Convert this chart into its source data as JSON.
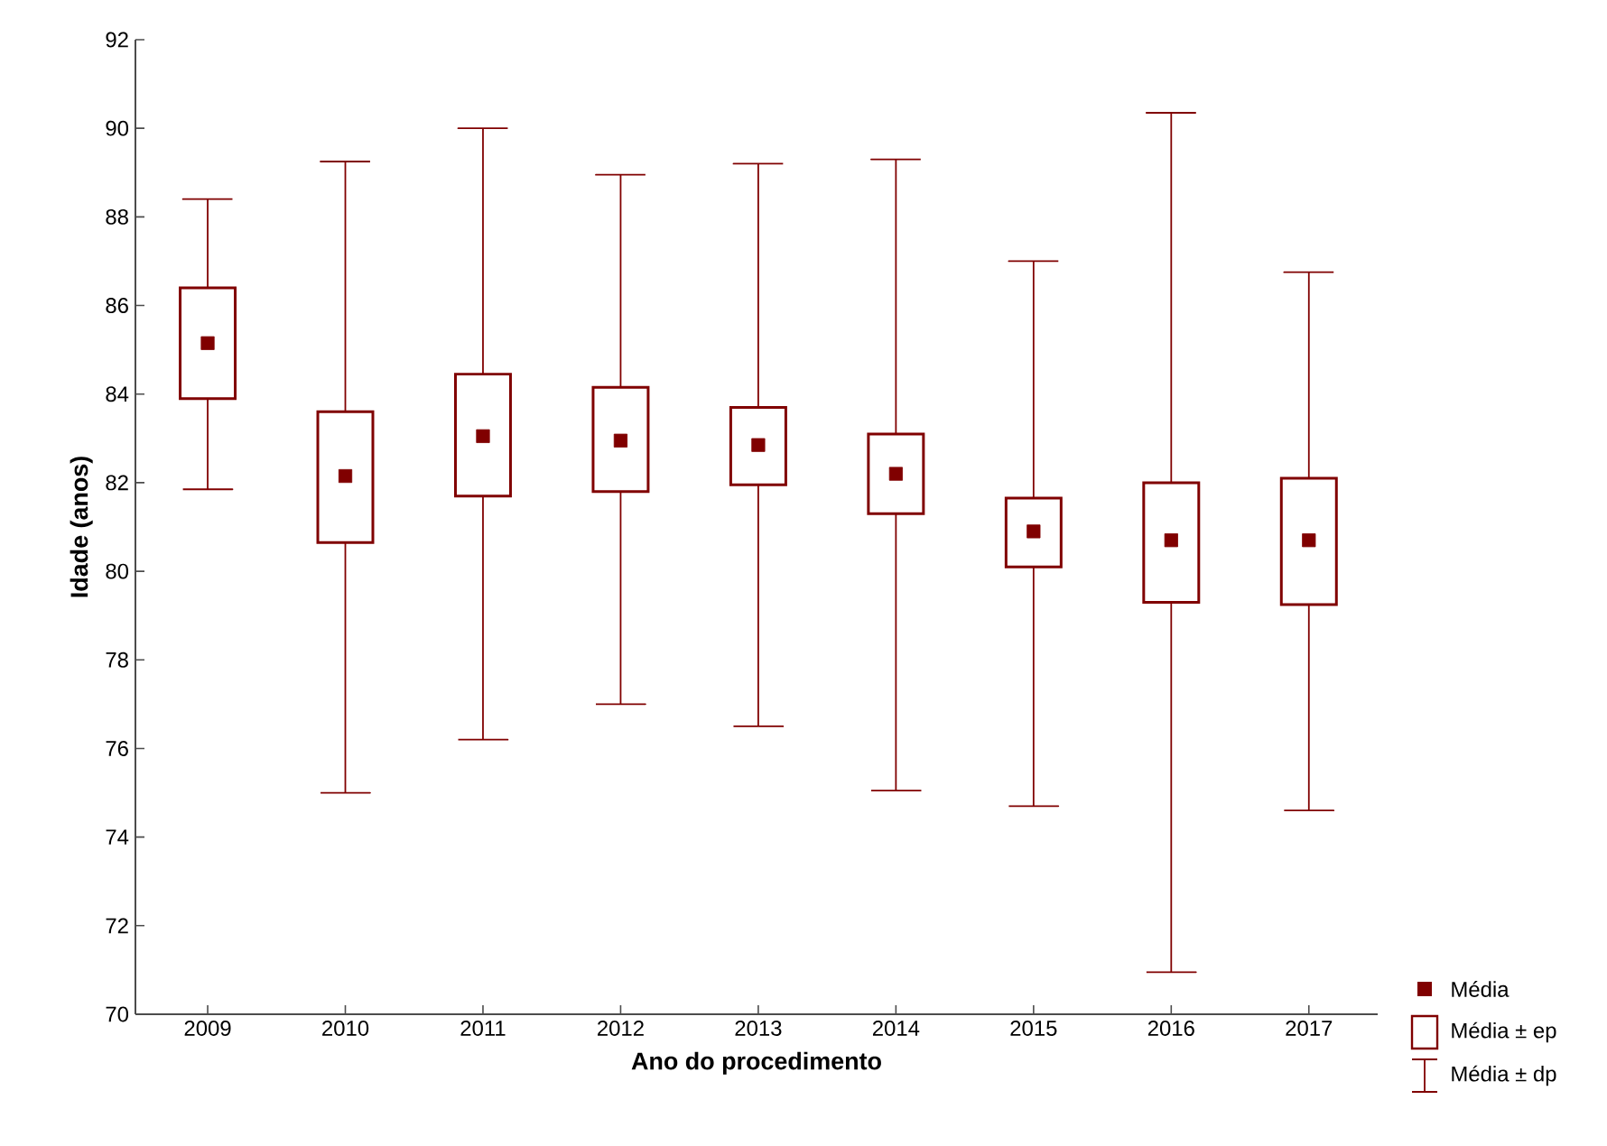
{
  "chart_data": {
    "type": "box",
    "xlabel": "Ano do procedimento",
    "ylabel": "Idade (anos)",
    "categories": [
      "2009",
      "2010",
      "2011",
      "2012",
      "2013",
      "2014",
      "2015",
      "2016",
      "2017"
    ],
    "ylim": [
      70,
      92
    ],
    "yticks": [
      70,
      72,
      74,
      76,
      78,
      80,
      82,
      84,
      86,
      88,
      90,
      92
    ],
    "color": "#800000",
    "marker": "square",
    "annotations": [
      "Média",
      "Média ± ep",
      "Média ± dp"
    ],
    "boxes": [
      {
        "low": 81.85,
        "q1": 83.9,
        "q3": 86.4,
        "high": 88.4,
        "mean": 85.15
      },
      {
        "low": 75.0,
        "q1": 80.65,
        "q3": 83.6,
        "high": 89.25,
        "mean": 82.15
      },
      {
        "low": 76.2,
        "q1": 81.7,
        "q3": 84.45,
        "high": 90.0,
        "mean": 83.05
      },
      {
        "low": 77.0,
        "q1": 81.8,
        "q3": 84.15,
        "high": 88.95,
        "mean": 82.95
      },
      {
        "low": 76.5,
        "q1": 81.95,
        "q3": 83.7,
        "high": 89.2,
        "mean": 82.85
      },
      {
        "low": 75.05,
        "q1": 81.3,
        "q3": 83.1,
        "high": 89.3,
        "mean": 82.2
      },
      {
        "low": 74.7,
        "q1": 80.1,
        "q3": 81.65,
        "high": 87.0,
        "mean": 80.9
      },
      {
        "low": 70.95,
        "q1": 79.3,
        "q3": 82.0,
        "high": 90.35,
        "mean": 80.7
      },
      {
        "low": 74.6,
        "q1": 79.25,
        "q3": 82.1,
        "high": 86.75,
        "mean": 80.7
      }
    ]
  }
}
